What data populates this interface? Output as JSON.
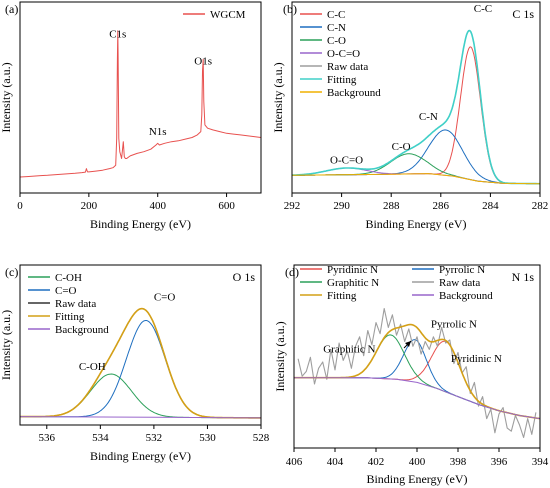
{
  "chart_data": [
    {
      "type": "line",
      "panel_label": "(a)",
      "xlabel": "Binding Energy (eV)",
      "ylabel": "Intensity (a.u.)",
      "xlim": [
        0,
        700
      ],
      "ylim": [
        0,
        100
      ],
      "x_ticks": [
        0,
        200,
        400,
        600
      ],
      "x_reversed": false,
      "legend": "top-right",
      "annotations": [
        {
          "text": "C1s",
          "x": 284,
          "y": 88
        },
        {
          "text": "O1s",
          "x": 532,
          "y": 72
        },
        {
          "text": "N1s",
          "x": 400,
          "y": 30
        }
      ],
      "series": [
        {
          "name": "WGCM",
          "color": "#e8514f",
          "legend": true,
          "x": [
            0,
            20,
            40,
            60,
            80,
            100,
            120,
            140,
            160,
            180,
            190,
            193,
            196,
            200,
            220,
            240,
            260,
            270,
            278,
            281,
            283,
            284,
            285,
            287,
            290,
            295,
            300,
            303,
            306,
            310,
            320,
            340,
            360,
            380,
            395,
            400,
            405,
            420,
            440,
            460,
            480,
            500,
            515,
            525,
            528,
            530,
            532,
            534,
            537,
            545,
            560,
            580,
            600,
            620,
            640,
            660,
            680,
            700
          ],
          "y": [
            5,
            5.2,
            5.5,
            5.8,
            6,
            6.3,
            6.6,
            6.9,
            7.2,
            7.6,
            7.9,
            10,
            8,
            8,
            8.5,
            9,
            10,
            10.5,
            12,
            28,
            75,
            92,
            78,
            28,
            20,
            16,
            26,
            17,
            16,
            16,
            17.5,
            19,
            20,
            21.5,
            24,
            25,
            24,
            25,
            26,
            26.5,
            27.5,
            28.5,
            30,
            32,
            42,
            68,
            75,
            50,
            36,
            34,
            33,
            32,
            31,
            30.5,
            30,
            29.5,
            29,
            28.5
          ]
        }
      ]
    },
    {
      "type": "line",
      "panel_label": "(b)",
      "title": "C 1s",
      "xlabel": "Binding Energy (eV)",
      "ylabel": "Intensity (a.u.)",
      "xlim": [
        292,
        282
      ],
      "ylim": [
        0,
        100
      ],
      "x_ticks": [
        292,
        290,
        288,
        286,
        284,
        282
      ],
      "x_reversed": true,
      "legend": "top-left",
      "annotations": [
        {
          "text": "C-C",
          "x": 284.3,
          "y": 103
        },
        {
          "text": "C-N",
          "x": 286.5,
          "y": 39
        },
        {
          "text": "C-O",
          "x": 287.6,
          "y": 21
        },
        {
          "text": "O-C=O",
          "x": 289.8,
          "y": 13
        }
      ],
      "series": [
        {
          "name": "C-C",
          "color": "#e8514f",
          "legend": true,
          "peaks": [
            {
              "center": 284.8,
              "height": 79,
              "fwhm": 0.95
            }
          ],
          "baseline_from": "Background"
        },
        {
          "name": "C-N",
          "color": "#1f6fc0",
          "legend": true,
          "peaks": [
            {
              "center": 285.8,
              "height": 27,
              "fwhm": 1.6
            }
          ],
          "baseline_from": "Background"
        },
        {
          "name": "C-O",
          "color": "#2ca05a",
          "legend": true,
          "peaks": [
            {
              "center": 287.3,
              "height": 12,
              "fwhm": 1.7
            }
          ],
          "baseline_from": "Background"
        },
        {
          "name": "O-C=O",
          "color": "#9966cc",
          "legend": true,
          "peaks": [
            {
              "center": 289.8,
              "height": 4,
              "fwhm": 1.9
            }
          ],
          "baseline_from": "Background"
        },
        {
          "name": "Raw data",
          "color": "#9e9e9e",
          "legend": true,
          "sum_of": [
            "C-C",
            "C-N",
            "C-O",
            "O-C=O"
          ],
          "baseline_from": "Background"
        },
        {
          "name": "Fitting",
          "color": "#40d0c8",
          "legend": true,
          "sum_of": [
            "C-C",
            "C-N",
            "C-O",
            "O-C=O"
          ],
          "baseline_from": "Background"
        },
        {
          "name": "Background",
          "color": "#f0b000",
          "legend": true,
          "x": [
            292,
            288.5,
            286.5,
            285.5,
            284.5,
            283.5,
            282
          ],
          "y": [
            6,
            6.5,
            7,
            5.5,
            2.5,
            1.2,
            1
          ]
        }
      ]
    },
    {
      "type": "line",
      "panel_label": "(c)",
      "title": "O 1s",
      "xlabel": "Binding Energy (eV)",
      "ylabel": "Intensity (a.u.)",
      "xlim": [
        537,
        528
      ],
      "ylim": [
        0,
        100
      ],
      "x_ticks": [
        536,
        534,
        532,
        530,
        528
      ],
      "x_reversed": true,
      "legend": "top-left",
      "annotations": [
        {
          "text": "C=O",
          "x": 531.6,
          "y": 88
        },
        {
          "text": "C-OH",
          "x": 534.3,
          "y": 36
        }
      ],
      "series": [
        {
          "name": "C-OH",
          "color": "#2ca05a",
          "legend": true,
          "peaks": [
            {
              "center": 533.6,
              "height": 32,
              "fwhm": 1.8
            }
          ],
          "baseline_from": "Background"
        },
        {
          "name": "C=O",
          "color": "#1f6fc0",
          "legend": true,
          "peaks": [
            {
              "center": 532.3,
              "height": 72,
              "fwhm": 1.7
            }
          ],
          "baseline_from": "Background"
        },
        {
          "name": "Raw data",
          "color": "#333333",
          "legend": true,
          "sum_of": [
            "C-OH",
            "C=O"
          ],
          "baseline_from": "Background"
        },
        {
          "name": "Fitting",
          "color": "#d4a017",
          "legend": true,
          "sum_of": [
            "C-OH",
            "C=O"
          ],
          "baseline_from": "Background"
        },
        {
          "name": "Background",
          "color": "#9966cc",
          "legend": true,
          "x": [
            537,
            532,
            528
          ],
          "y": [
            1.5,
            1,
            0.5
          ]
        }
      ]
    },
    {
      "type": "line",
      "panel_label": "(d)",
      "title": "N 1s",
      "xlabel": "Binding Energy (eV)",
      "ylabel": "Intensity (a.u.)",
      "xlim": [
        406,
        394
      ],
      "ylim": [
        0,
        100
      ],
      "x_ticks": [
        406,
        404,
        402,
        400,
        398,
        396,
        394
      ],
      "x_reversed": true,
      "legend": "top-left",
      "annotations": [
        {
          "text": "Pyrrolic N",
          "x": 398.2,
          "y": 72
        },
        {
          "text": "Pyridinic N",
          "x": 397.1,
          "y": 50
        },
        {
          "text": "Graphitic N",
          "x": 403.3,
          "y": 56
        }
      ],
      "series": [
        {
          "name": "Pyridinic N",
          "color": "#e8514f",
          "legend": true,
          "peaks": [
            {
              "center": 398.6,
              "height": 32,
              "fwhm": 1.6
            }
          ],
          "baseline_from": "Background"
        },
        {
          "name": "Pyrrolic N",
          "color": "#1f6fc0",
          "legend": true,
          "peaks": [
            {
              "center": 400.1,
              "height": 27,
              "fwhm": 1.3
            }
          ],
          "baseline_from": "Background"
        },
        {
          "name": "Graphitic N",
          "color": "#2ca05a",
          "legend": true,
          "peaks": [
            {
              "center": 401.3,
              "height": 28,
              "fwhm": 1.6
            }
          ],
          "baseline_from": "Background"
        },
        {
          "name": "Raw data",
          "color": "#9e9e9e",
          "legend": true,
          "x": [
            405.8,
            405.6,
            405.4,
            405.2,
            405,
            404.8,
            404.6,
            404.4,
            404.2,
            404,
            403.8,
            403.6,
            403.4,
            403.2,
            403,
            402.8,
            402.6,
            402.4,
            402.2,
            402,
            401.8,
            401.6,
            401.4,
            401.2,
            401,
            400.8,
            400.6,
            400.4,
            400.2,
            400,
            399.8,
            399.6,
            399.4,
            399.2,
            399,
            398.8,
            398.6,
            398.4,
            398.2,
            398,
            397.8,
            397.6,
            397.4,
            397.2,
            397,
            396.8,
            396.6,
            396.4,
            396.2,
            396,
            395.8,
            395.6,
            395.4,
            395.2,
            395,
            394.8,
            394.6,
            394.4,
            394.2
          ],
          "y": [
            52,
            41,
            44,
            53,
            36,
            46,
            50,
            39,
            58,
            45,
            62,
            51,
            57,
            46,
            60,
            66,
            54,
            70,
            61,
            75,
            68,
            84,
            72,
            80,
            67,
            74,
            63,
            71,
            60,
            66,
            55,
            63,
            58,
            66,
            60,
            72,
            62,
            64,
            49,
            56,
            43,
            47,
            30,
            37,
            22,
            28,
            14,
            20,
            5,
            17,
            21,
            8,
            6,
            16,
            10,
            2,
            14,
            4,
            18
          ]
        },
        {
          "name": "Fitting",
          "color": "#d4a017",
          "legend": true,
          "sum_of": [
            "Pyridinic N",
            "Pyrrolic N",
            "Graphitic N"
          ],
          "baseline_from": "Background"
        },
        {
          "name": "Background",
          "color": "#9966cc",
          "legend": true,
          "x": [
            406,
            402.5,
            401,
            400,
            399,
            398,
            397,
            396,
            395,
            394
          ],
          "y": [
            40,
            40,
            39,
            37,
            33,
            28,
            23,
            19,
            16,
            14
          ]
        }
      ]
    }
  ]
}
